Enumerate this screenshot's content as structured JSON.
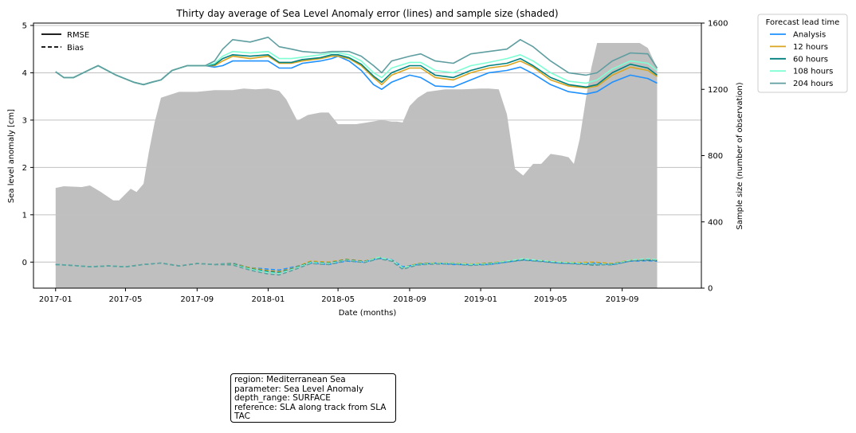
{
  "chart_data": {
    "type": "line",
    "title": "Thirty day average of Sea Level Anomaly error (lines) and sample size (shaded)",
    "xlabel": "Date (months)",
    "ylabel": "Sea level anomaly [cm]",
    "y2label": "Sample size (number of observation)",
    "xlim": [
      "2016-11-24",
      "2020-01-15"
    ],
    "ylim": [
      -0.55,
      5.05
    ],
    "y2lim": [
      0,
      1600
    ],
    "x_ticks": [
      "2017-01",
      "2017-05",
      "2017-09",
      "2018-01",
      "2018-05",
      "2018-09",
      "2019-01",
      "2019-05",
      "2019-09"
    ],
    "y_ticks": [
      0,
      1,
      2,
      3,
      4,
      5
    ],
    "y2_ticks": [
      0,
      400,
      800,
      1200,
      1600
    ],
    "grid": "horizontal",
    "legend_style_entries": [
      "RMSE",
      "Bias"
    ],
    "legend_title": "Forecast lead time",
    "colors": {
      "Analysis": "#1e90ff",
      "12 hours": "#daa520",
      "60 hours": "#008080",
      "108 hours": "#7fffd4",
      "204 hours": "#5f9ea0",
      "sample_fill": "#bfbfbf",
      "grid": "#c0c0c0"
    },
    "sample_size": {
      "x": [
        "2017-01-01",
        "2017-01-15",
        "2017-02-15",
        "2017-03-01",
        "2017-03-20",
        "2017-04-10",
        "2017-04-20",
        "2017-05-10",
        "2017-05-20",
        "2017-06-01",
        "2017-06-10",
        "2017-06-20",
        "2017-07-01",
        "2017-08-01",
        "2017-09-01",
        "2017-10-01",
        "2017-11-01",
        "2017-11-20",
        "2017-12-10",
        "2018-01-01",
        "2018-01-20",
        "2018-02-01",
        "2018-02-20",
        "2018-03-10",
        "2018-04-01",
        "2018-04-15",
        "2018-05-01",
        "2018-06-01",
        "2018-06-20",
        "2018-07-15",
        "2018-08-01",
        "2018-08-10",
        "2018-08-20",
        "2018-09-01",
        "2018-09-15",
        "2018-10-01",
        "2018-11-01",
        "2018-12-01",
        "2019-01-01",
        "2019-01-15",
        "2019-02-01",
        "2019-02-15",
        "2019-03-01",
        "2019-03-15",
        "2019-04-01",
        "2019-04-15",
        "2019-05-01",
        "2019-05-20",
        "2019-06-01",
        "2019-06-10",
        "2019-06-20",
        "2019-07-01",
        "2019-07-10",
        "2019-07-20",
        "2019-08-01",
        "2019-09-01",
        "2019-09-20",
        "2019-10-01",
        "2019-10-15",
        "2019-10-31"
      ],
      "values": [
        605,
        615,
        610,
        620,
        580,
        530,
        530,
        600,
        580,
        630,
        820,
        1000,
        1150,
        1185,
        1185,
        1195,
        1195,
        1205,
        1200,
        1205,
        1190,
        1140,
        1010,
        1045,
        1060,
        1060,
        990,
        990,
        1000,
        1015,
        1005,
        1005,
        1000,
        1100,
        1150,
        1185,
        1200,
        1200,
        1205,
        1205,
        1200,
        1050,
        720,
        680,
        750,
        750,
        810,
        800,
        790,
        750,
        900,
        1150,
        1330,
        1480,
        1480,
        1480,
        1480,
        1480,
        1450,
        1330
      ]
    },
    "rmse": {
      "x": [
        "2017-01-01",
        "2017-01-15",
        "2017-02-01",
        "2017-03-01",
        "2017-03-15",
        "2017-04-15",
        "2017-05-15",
        "2017-06-01",
        "2017-06-15",
        "2017-07-01",
        "2017-07-20",
        "2017-08-15",
        "2017-09-15",
        "2017-10-01",
        "2017-10-15",
        "2017-11-01",
        "2017-12-01",
        "2018-01-01",
        "2018-01-20",
        "2018-02-10",
        "2018-03-01",
        "2018-04-01",
        "2018-04-20",
        "2018-05-01",
        "2018-05-20",
        "2018-06-10",
        "2018-07-01",
        "2018-07-15",
        "2018-08-01",
        "2018-09-01",
        "2018-09-20",
        "2018-10-15",
        "2018-11-15",
        "2018-12-15",
        "2019-01-15",
        "2019-02-15",
        "2019-03-10",
        "2019-04-01",
        "2019-05-01",
        "2019-06-01",
        "2019-07-01",
        "2019-07-20",
        "2019-08-15",
        "2019-09-15",
        "2019-10-15",
        "2019-10-31"
      ],
      "series": [
        {
          "name": "Analysis",
          "values": [
            4.02,
            3.9,
            3.9,
            4.07,
            4.15,
            3.95,
            3.8,
            3.75,
            3.8,
            3.85,
            4.05,
            4.15,
            4.15,
            4.12,
            4.15,
            4.25,
            4.25,
            4.25,
            4.1,
            4.1,
            4.2,
            4.25,
            4.3,
            4.35,
            4.25,
            4.05,
            3.75,
            3.65,
            3.8,
            3.95,
            3.9,
            3.72,
            3.7,
            3.85,
            4.0,
            4.05,
            4.12,
            3.98,
            3.75,
            3.6,
            3.55,
            3.6,
            3.8,
            3.95,
            3.88,
            3.78
          ]
        },
        {
          "name": "12 hours",
          "values": [
            4.02,
            3.9,
            3.9,
            4.07,
            4.15,
            3.95,
            3.8,
            3.75,
            3.8,
            3.85,
            4.05,
            4.15,
            4.15,
            4.15,
            4.25,
            4.35,
            4.3,
            4.35,
            4.2,
            4.2,
            4.25,
            4.3,
            4.35,
            4.35,
            4.3,
            4.15,
            3.9,
            3.75,
            3.95,
            4.1,
            4.1,
            3.9,
            3.85,
            4.0,
            4.1,
            4.15,
            4.25,
            4.12,
            3.85,
            3.72,
            3.68,
            3.72,
            3.95,
            4.12,
            4.05,
            3.92
          ]
        },
        {
          "name": "60 hours",
          "values": [
            4.02,
            3.9,
            3.9,
            4.07,
            4.15,
            3.95,
            3.8,
            3.75,
            3.8,
            3.85,
            4.05,
            4.15,
            4.15,
            4.17,
            4.3,
            4.38,
            4.35,
            4.38,
            4.22,
            4.22,
            4.28,
            4.32,
            4.38,
            4.38,
            4.32,
            4.18,
            3.93,
            3.8,
            4.0,
            4.15,
            4.15,
            3.95,
            3.9,
            4.05,
            4.15,
            4.2,
            4.3,
            4.15,
            3.9,
            3.75,
            3.7,
            3.75,
            4.0,
            4.18,
            4.1,
            3.95
          ]
        },
        {
          "name": "108 hours",
          "values": [
            4.02,
            3.9,
            3.9,
            4.07,
            4.15,
            3.95,
            3.8,
            3.75,
            3.8,
            3.85,
            4.05,
            4.15,
            4.15,
            4.2,
            4.35,
            4.45,
            4.42,
            4.45,
            4.3,
            4.3,
            4.33,
            4.38,
            4.42,
            4.42,
            4.38,
            4.25,
            4.0,
            3.9,
            4.1,
            4.22,
            4.22,
            4.05,
            4.0,
            4.15,
            4.22,
            4.3,
            4.38,
            4.25,
            4.0,
            3.82,
            3.78,
            3.85,
            4.08,
            4.25,
            4.2,
            4.05
          ]
        },
        {
          "name": "204 hours",
          "values": [
            4.02,
            3.9,
            3.9,
            4.07,
            4.15,
            3.95,
            3.8,
            3.75,
            3.8,
            3.85,
            4.05,
            4.15,
            4.15,
            4.25,
            4.5,
            4.7,
            4.65,
            4.75,
            4.55,
            4.5,
            4.45,
            4.42,
            4.45,
            4.45,
            4.45,
            4.35,
            4.15,
            4.0,
            4.25,
            4.35,
            4.4,
            4.25,
            4.2,
            4.4,
            4.45,
            4.5,
            4.7,
            4.55,
            4.25,
            4.0,
            3.95,
            4.0,
            4.25,
            4.42,
            4.4,
            4.1
          ]
        }
      ]
    },
    "bias": {
      "x": [
        "2017-01-01",
        "2017-02-01",
        "2017-03-01",
        "2017-04-01",
        "2017-05-01",
        "2017-06-01",
        "2017-07-01",
        "2017-08-01",
        "2017-09-01",
        "2017-10-01",
        "2017-11-01",
        "2017-12-01",
        "2018-01-01",
        "2018-01-20",
        "2018-02-15",
        "2018-03-15",
        "2018-04-15",
        "2018-05-15",
        "2018-06-15",
        "2018-07-10",
        "2018-08-01",
        "2018-08-20",
        "2018-09-15",
        "2018-10-15",
        "2018-11-15",
        "2018-12-15",
        "2019-01-15",
        "2019-02-15",
        "2019-03-15",
        "2019-04-15",
        "2019-05-15",
        "2019-06-15",
        "2019-07-15",
        "2019-08-15",
        "2019-09-15",
        "2019-10-15",
        "2019-10-31"
      ],
      "series": [
        {
          "name": "Analysis",
          "values": [
            -0.05,
            -0.07,
            -0.1,
            -0.08,
            -0.1,
            -0.05,
            -0.02,
            -0.08,
            -0.03,
            -0.05,
            -0.02,
            -0.12,
            -0.15,
            -0.17,
            -0.1,
            -0.02,
            -0.05,
            0.02,
            0.0,
            0.08,
            0.05,
            -0.1,
            -0.05,
            -0.02,
            -0.05,
            -0.05,
            -0.05,
            0.0,
            0.05,
            0.02,
            -0.02,
            -0.03,
            -0.02,
            -0.05,
            0.02,
            0.03,
            0.02
          ]
        },
        {
          "name": "12 hours",
          "values": [
            -0.05,
            -0.07,
            -0.1,
            -0.08,
            -0.1,
            -0.05,
            -0.02,
            -0.08,
            -0.03,
            -0.05,
            -0.03,
            -0.12,
            -0.18,
            -0.2,
            -0.12,
            0.02,
            0.0,
            0.06,
            0.02,
            0.1,
            0.04,
            -0.12,
            -0.03,
            -0.02,
            -0.02,
            -0.04,
            -0.02,
            0.02,
            0.06,
            0.03,
            0.0,
            -0.01,
            0.0,
            -0.03,
            0.04,
            0.05,
            0.04
          ]
        },
        {
          "name": "60 hours",
          "values": [
            -0.05,
            -0.07,
            -0.1,
            -0.08,
            -0.1,
            -0.05,
            -0.02,
            -0.08,
            -0.03,
            -0.05,
            -0.04,
            -0.14,
            -0.2,
            -0.22,
            -0.13,
            0.0,
            -0.02,
            0.05,
            0.01,
            0.09,
            0.03,
            -0.13,
            -0.04,
            -0.03,
            -0.03,
            -0.06,
            -0.03,
            0.01,
            0.05,
            0.02,
            -0.01,
            -0.03,
            -0.06,
            -0.04,
            0.03,
            0.04,
            0.03
          ]
        },
        {
          "name": "108 hours",
          "values": [
            -0.05,
            -0.07,
            -0.1,
            -0.08,
            -0.1,
            -0.05,
            -0.02,
            -0.08,
            -0.03,
            -0.05,
            -0.05,
            -0.15,
            -0.22,
            -0.24,
            -0.14,
            -0.01,
            -0.03,
            0.04,
            0.0,
            0.1,
            0.04,
            -0.12,
            -0.05,
            -0.03,
            -0.03,
            -0.05,
            -0.04,
            0.02,
            0.07,
            0.03,
            0.0,
            -0.02,
            -0.04,
            -0.05,
            0.04,
            0.07,
            0.05
          ]
        },
        {
          "name": "204 hours",
          "values": [
            -0.05,
            -0.07,
            -0.1,
            -0.08,
            -0.1,
            -0.05,
            -0.02,
            -0.08,
            -0.03,
            -0.05,
            -0.06,
            -0.17,
            -0.25,
            -0.27,
            -0.16,
            -0.03,
            -0.05,
            0.03,
            -0.01,
            0.07,
            0.02,
            -0.15,
            -0.06,
            -0.04,
            -0.04,
            -0.07,
            -0.05,
            0.0,
            0.04,
            0.01,
            -0.02,
            -0.04,
            -0.05,
            -0.06,
            0.02,
            0.05,
            0.03
          ]
        }
      ]
    }
  },
  "info_box": {
    "lines": [
      "region: Mediterranean Sea",
      "parameter: Sea Level Anomaly",
      "depth_range: SURFACE",
      "reference: SLA along track from SLA",
      "TAC"
    ]
  }
}
